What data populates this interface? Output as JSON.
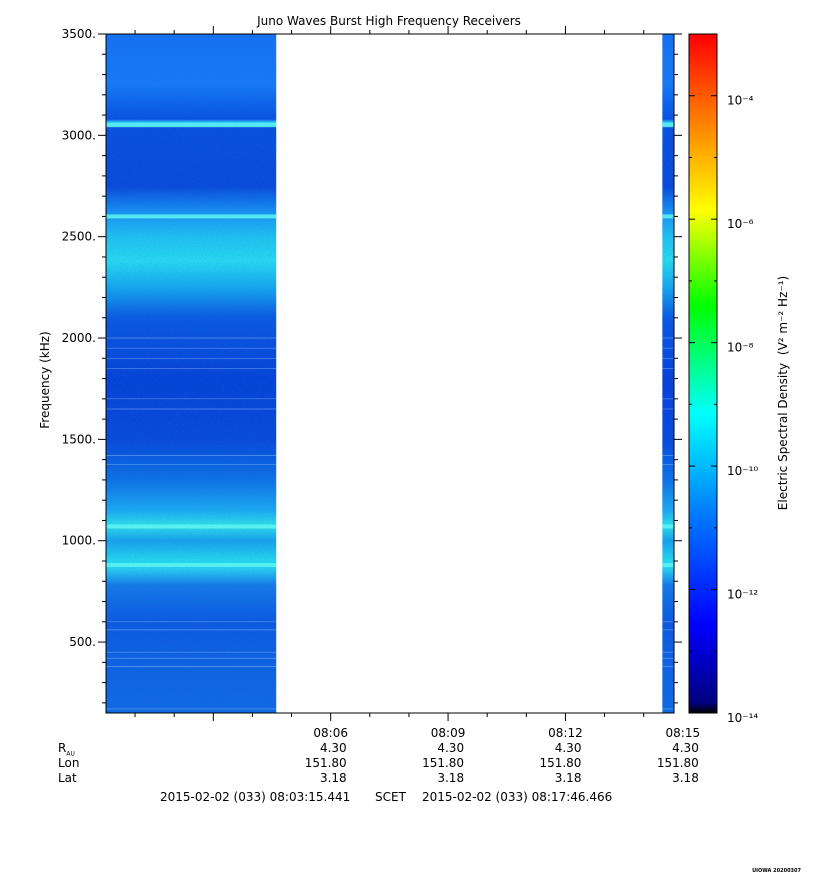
{
  "chart_data": {
    "type": "heatmap",
    "title": "Juno Waves Burst High Frequency Receivers",
    "ylabel": "Frequency (kHz)",
    "ylim": [
      150,
      3500
    ],
    "yticks": [
      500,
      1000,
      1500,
      2000,
      2500,
      3000,
      3500
    ],
    "ytick_labels": [
      "500.",
      "1000.",
      "1500.",
      "2000.",
      "2500.",
      "3000.",
      "3500."
    ],
    "x_start": "2015-02-02 (033) 08:03:15.441",
    "x_end": "2015-02-02 (033) 08:17:46.466",
    "x_ticks_minutes": [
      6,
      9,
      12,
      15
    ],
    "x_tick_labels": [
      "08:06",
      "08:09",
      "08:12",
      "08:15"
    ],
    "data_segments_minutes": [
      [
        0,
        4.35
      ],
      [
        14.22,
        14.52
      ]
    ],
    "colorbar": {
      "label": "Electric Spectral Density",
      "label_units": "(V² m⁻² Hz⁻¹)",
      "scale": "log",
      "range_exponent": [
        -14,
        -3
      ],
      "tick_exponents": [
        -14,
        -12,
        -10,
        -8,
        -6,
        -4
      ],
      "tick_labels": [
        "10⁻¹⁴",
        "10⁻¹²",
        "10⁻¹⁰",
        "10⁻⁸",
        "10⁻⁶",
        "10⁻⁴"
      ],
      "colors": [
        "#000080",
        "#0000ff",
        "#0080ff",
        "#00ffff",
        "#00ff00",
        "#ffff00",
        "#ff8000",
        "#ff0000"
      ]
    },
    "bright_bands_khz": [
      3050,
      2600,
      1070,
      880
    ],
    "ephemeris": {
      "labels": [
        "R",
        "Lon",
        "Lat"
      ],
      "r_subscript": "AU",
      "R": [
        "4.30",
        "4.30",
        "4.30",
        "4.30"
      ],
      "Lon": [
        "151.80",
        "151.80",
        "151.80",
        "151.80"
      ],
      "Lat": [
        "3.18",
        "3.18",
        "3.18",
        "3.18"
      ]
    },
    "scet_label": "SCET",
    "stamp": "UIOWA 20200307"
  }
}
